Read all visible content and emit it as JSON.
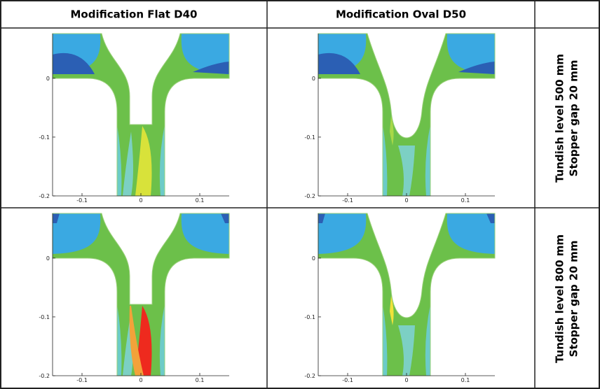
{
  "header": {
    "columns": [
      "Modification Flat D40",
      "Modification Oval D50"
    ]
  },
  "rows": [
    {
      "label": [
        "Tundish level 500 mm",
        "Stopper gap 20 mm"
      ]
    },
    {
      "label": [
        "Tundish level 800 mm",
        "Stopper gap 20 mm"
      ]
    }
  ],
  "axes": {
    "xlim": [
      -0.15,
      0.15
    ],
    "ylim": [
      -0.2,
      0.076
    ],
    "xticks": [
      -0.1,
      0,
      0.1
    ],
    "yticks": [
      0,
      -0.1,
      -0.2
    ]
  }
}
